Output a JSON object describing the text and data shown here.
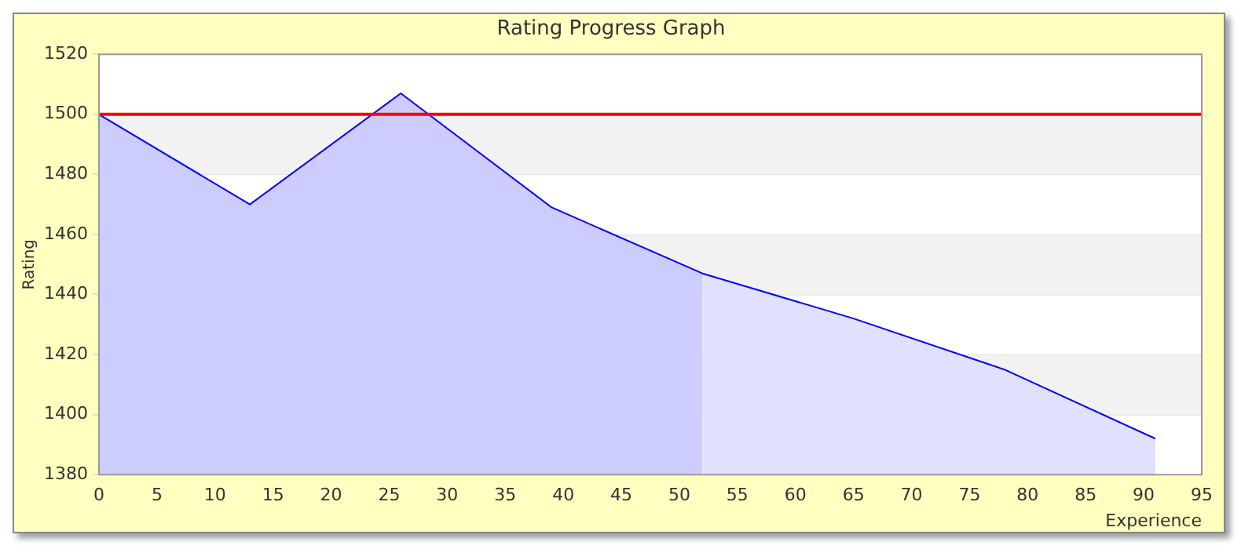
{
  "chart_data": {
    "type": "area",
    "title": "Rating Progress Graph",
    "xlabel": "Experience",
    "ylabel": "Rating",
    "x": [
      0,
      13,
      26,
      39,
      52,
      65,
      78,
      91
    ],
    "series": [
      {
        "color": "#ccccff",
        "x": [
          0,
          13,
          26,
          39,
          52
        ],
        "values": [
          1500,
          1470,
          1507,
          1469,
          1447
        ]
      },
      {
        "color": "#e0e0ff",
        "x": [
          52,
          65,
          78,
          91
        ],
        "values": [
          1447,
          1432,
          1415,
          1392
        ]
      },
      {
        "type": "line",
        "color": "#0000ff",
        "values": [
          1500,
          1470,
          1507,
          1469,
          1447,
          1432,
          1415,
          1392
        ]
      }
    ],
    "xlim": [
      0,
      95
    ],
    "xticks": [
      0,
      5,
      10,
      15,
      20,
      25,
      30,
      35,
      40,
      45,
      50,
      55,
      60,
      65,
      70,
      75,
      80,
      85,
      90,
      95
    ],
    "ylim": [
      1380,
      1520
    ],
    "yticks": [
      1380,
      1400,
      1420,
      1440,
      1460,
      1480,
      1500,
      1520
    ],
    "ref_lines": [
      {
        "axis": "y",
        "value": 1500,
        "color": "#ff0000"
      }
    ],
    "grid": "y",
    "legend": false,
    "marker": "none",
    "line_style": "solid"
  }
}
